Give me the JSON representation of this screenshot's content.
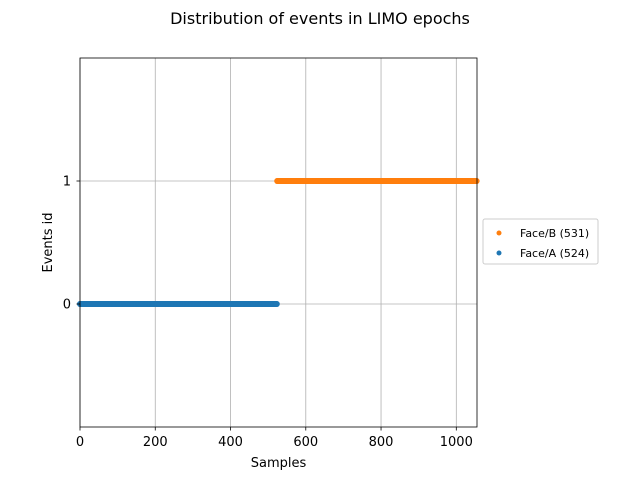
{
  "chart_data": {
    "type": "scatter",
    "title": "Distribution of events in LIMO epochs",
    "xlabel": "Samples",
    "ylabel": "Events id",
    "xlim": [
      0,
      1055
    ],
    "ylim": [
      -1,
      2
    ],
    "x_ticks": [
      0,
      200,
      400,
      600,
      800,
      1000
    ],
    "y_ticks": [
      0,
      1
    ],
    "grid": true,
    "legend_position": "right",
    "series": [
      {
        "name": "Face/B (531)",
        "color": "#ff7f0e",
        "event_id": 1,
        "x_start": 524,
        "x_end": 1054
      },
      {
        "name": "Face/A (524)",
        "color": "#1f77b4",
        "event_id": 0,
        "x_start": 0,
        "x_end": 523
      }
    ]
  }
}
